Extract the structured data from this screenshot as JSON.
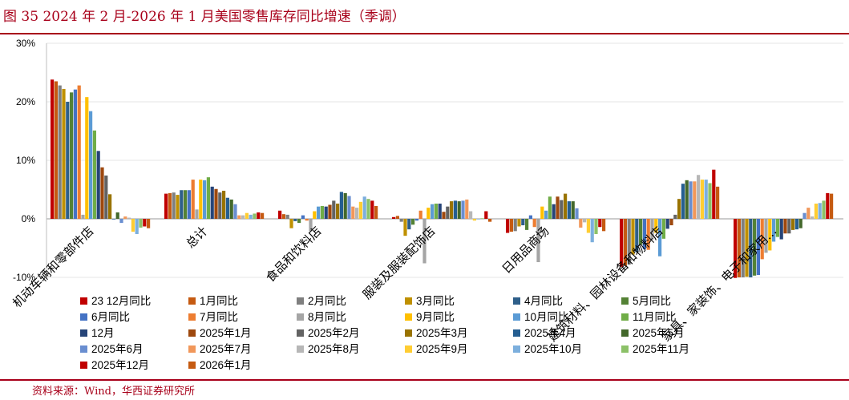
{
  "figure": {
    "title": "图 35  2024 年 2 月-2026 年 1 月美国零售库存同比增速（季调）",
    "source": "资料来源：Wind，华西证券研究所"
  },
  "colors": {
    "accent": "#a8001a",
    "series": [
      "#c00000",
      "#c55a11",
      "#7f7f7f",
      "#bf9000",
      "#2e5f8a",
      "#548235",
      "#4472c4",
      "#ed7d31",
      "#a5a5a5",
      "#ffc000",
      "#5b9bd5",
      "#70ad47",
      "#264478",
      "#9e480e",
      "#636363",
      "#997300",
      "#255e91",
      "#43682b",
      "#698ed0",
      "#f1975a",
      "#b7b7b7",
      "#ffcd33",
      "#7cafdd",
      "#8cc168"
    ]
  },
  "chart_data": {
    "type": "bar",
    "ylim": [
      -10,
      30
    ],
    "yticks": [
      -10,
      0,
      10,
      20,
      30
    ],
    "ytick_labels": [
      "-10%",
      "0%",
      "10%",
      "20%",
      "30%"
    ],
    "legend_position": "bottom",
    "categories": [
      "机动车辆和零部件店",
      "总计",
      "食品和饮料店",
      "服装及服装配饰店",
      "日用品商场",
      "建筑材料、园林设备和物料店",
      "家具、家装饰、电子和家用…"
    ],
    "series": [
      {
        "name": "23 12月同比",
        "values": [
          23.8,
          4.3,
          1.4,
          0.3,
          -2.4,
          -8.2,
          -10.1
        ]
      },
      {
        "name": "1月同比",
        "values": [
          23.5,
          4.4,
          0.8,
          0.5,
          -2.2,
          -8.0,
          -10.0
        ]
      },
      {
        "name": "2月同比",
        "values": [
          22.8,
          4.5,
          0.7,
          -0.5,
          -2.1,
          -7.8,
          -10.0
        ]
      },
      {
        "name": "3月同比",
        "values": [
          22.2,
          4.1,
          -1.6,
          -2.9,
          -1.3,
          -6.1,
          -9.9
        ]
      },
      {
        "name": "4月同比",
        "values": [
          20.0,
          4.9,
          -0.4,
          -1.8,
          -1.1,
          -5.7,
          -10.0
        ]
      },
      {
        "name": "5月同比",
        "values": [
          21.6,
          4.9,
          -0.7,
          -1.0,
          -1.9,
          -4.4,
          -9.7
        ]
      },
      {
        "name": "6月同比",
        "values": [
          22.1,
          4.9,
          0.6,
          -0.3,
          0.6,
          -5.2,
          -9.6
        ]
      },
      {
        "name": "7月同比",
        "values": [
          22.8,
          6.7,
          -0.3,
          1.4,
          -1.4,
          -5.3,
          -6.9
        ]
      },
      {
        "name": "8月同比",
        "values": [
          0.7,
          1.6,
          -2.1,
          -7.6,
          -7.4,
          -3.5,
          -5.8
        ]
      },
      {
        "name": "9月同比",
        "values": [
          20.8,
          6.7,
          1.3,
          1.9,
          2.1,
          -2.4,
          -5.4
        ]
      },
      {
        "name": "10月同比",
        "values": [
          18.4,
          6.6,
          2.1,
          2.5,
          1.4,
          -6.4,
          -3.9
        ]
      },
      {
        "name": "11月同比",
        "values": [
          15.1,
          7.1,
          2.2,
          2.6,
          3.8,
          -3.4,
          -3.1
        ]
      },
      {
        "name": "12月",
        "values": [
          11.6,
          5.5,
          2.1,
          2.6,
          2.5,
          -1.7,
          -3.5
        ]
      },
      {
        "name": "2025年1月",
        "values": [
          8.8,
          5.1,
          2.4,
          1.2,
          3.8,
          -1.1,
          -2.5
        ]
      },
      {
        "name": "2025年2月",
        "values": [
          7.4,
          4.5,
          3.1,
          2.1,
          3.2,
          0.7,
          -2.5
        ]
      },
      {
        "name": "2025年3月",
        "values": [
          4.2,
          4.8,
          2.6,
          3.0,
          4.3,
          3.4,
          -1.9
        ]
      },
      {
        "name": "2025年4月",
        "values": [
          -0.1,
          3.6,
          4.6,
          3.1,
          3.0,
          6.0,
          -1.8
        ]
      },
      {
        "name": "2025年5月",
        "values": [
          1.1,
          3.3,
          4.4,
          3.0,
          3.0,
          6.6,
          -1.6
        ]
      },
      {
        "name": "2025年6月",
        "values": [
          -0.7,
          2.5,
          3.9,
          3.1,
          1.8,
          6.4,
          1.0
        ]
      },
      {
        "name": "2025年7月",
        "values": [
          0.4,
          0.6,
          2.1,
          3.3,
          -1.5,
          6.4,
          1.9
        ]
      },
      {
        "name": "2025年8月",
        "values": [
          0.2,
          0.6,
          1.9,
          1.3,
          -0.6,
          7.5,
          0.4
        ]
      },
      {
        "name": "2025年9月",
        "values": [
          -2.2,
          1.0,
          2.9,
          -0.3,
          -2.4,
          6.7,
          2.6
        ]
      },
      {
        "name": "2025年10月",
        "values": [
          -2.6,
          0.7,
          3.8,
          -0.1,
          -4.0,
          6.7,
          2.7
        ]
      },
      {
        "name": "2025年11月",
        "values": [
          -1.5,
          0.9,
          3.4,
          0.1,
          -2.6,
          6.1,
          3.1
        ]
      },
      {
        "name": "2025年12月",
        "values": [
          -1.3,
          1.1,
          3.1,
          1.3,
          -1.4,
          8.4,
          4.4
        ]
      },
      {
        "name": "2026年1月",
        "values": [
          -1.6,
          1.0,
          2.2,
          -0.5,
          -2.1,
          5.5,
          4.3
        ]
      }
    ]
  }
}
